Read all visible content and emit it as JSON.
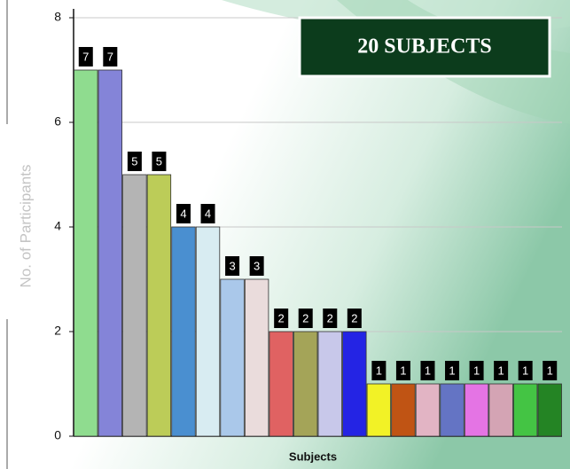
{
  "chart_data": {
    "type": "bar",
    "title": "20 SUBJECTS",
    "x_label": "Subjects",
    "y_label": "No. of Participants",
    "categories": [
      null,
      null,
      null,
      null,
      null,
      null,
      null,
      null,
      null,
      null,
      null,
      null,
      null,
      null,
      null,
      null,
      null,
      null,
      null,
      null
    ],
    "values": [
      7,
      7,
      5,
      5,
      4,
      4,
      3,
      3,
      2,
      2,
      2,
      2,
      1,
      1,
      1,
      1,
      1,
      1,
      1,
      1
    ],
    "colors": [
      "#8fdc8f",
      "#8484d8",
      "#b4b4b4",
      "#bccc58",
      "#4a8fd0",
      "#d8ecf2",
      "#aac8ea",
      "#eadcdc",
      "#e06262",
      "#a4a458",
      "#c8c8ea",
      "#2424e4",
      "#f2f226",
      "#c05414",
      "#e2b4c4",
      "#6474c4",
      "#e474e4",
      "#d4a4b4",
      "#44c444",
      "#248424"
    ],
    "ylim": [
      0,
      8
    ],
    "yticks": [
      0,
      2,
      4,
      6,
      8
    ],
    "grid": true
  }
}
